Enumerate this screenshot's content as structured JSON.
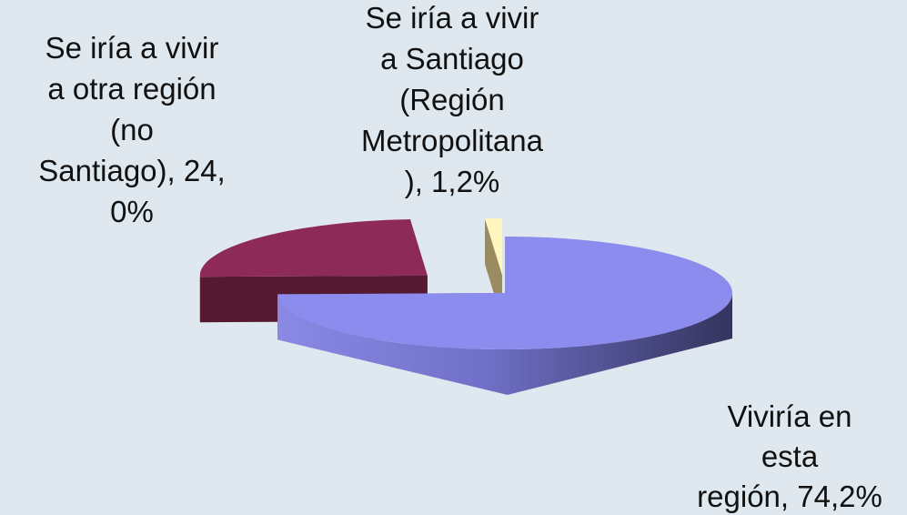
{
  "chart_data": {
    "type": "pie3d",
    "values": [
      74.2,
      24.0,
      1.2
    ],
    "value_labels": [
      [
        "Viviría en",
        "esta",
        "región, 74,2%"
      ],
      [
        "Se iría a vivir",
        "a otra región",
        "(no",
        "Santiago), 24,",
        "0%"
      ],
      [
        "Se iría a vivir",
        "a Santiago",
        "(Región",
        "Metropolitana",
        "), 1,2%"
      ]
    ],
    "colors": [
      "#8c8cee",
      "#8e2a58",
      "#fff6c0"
    ]
  }
}
